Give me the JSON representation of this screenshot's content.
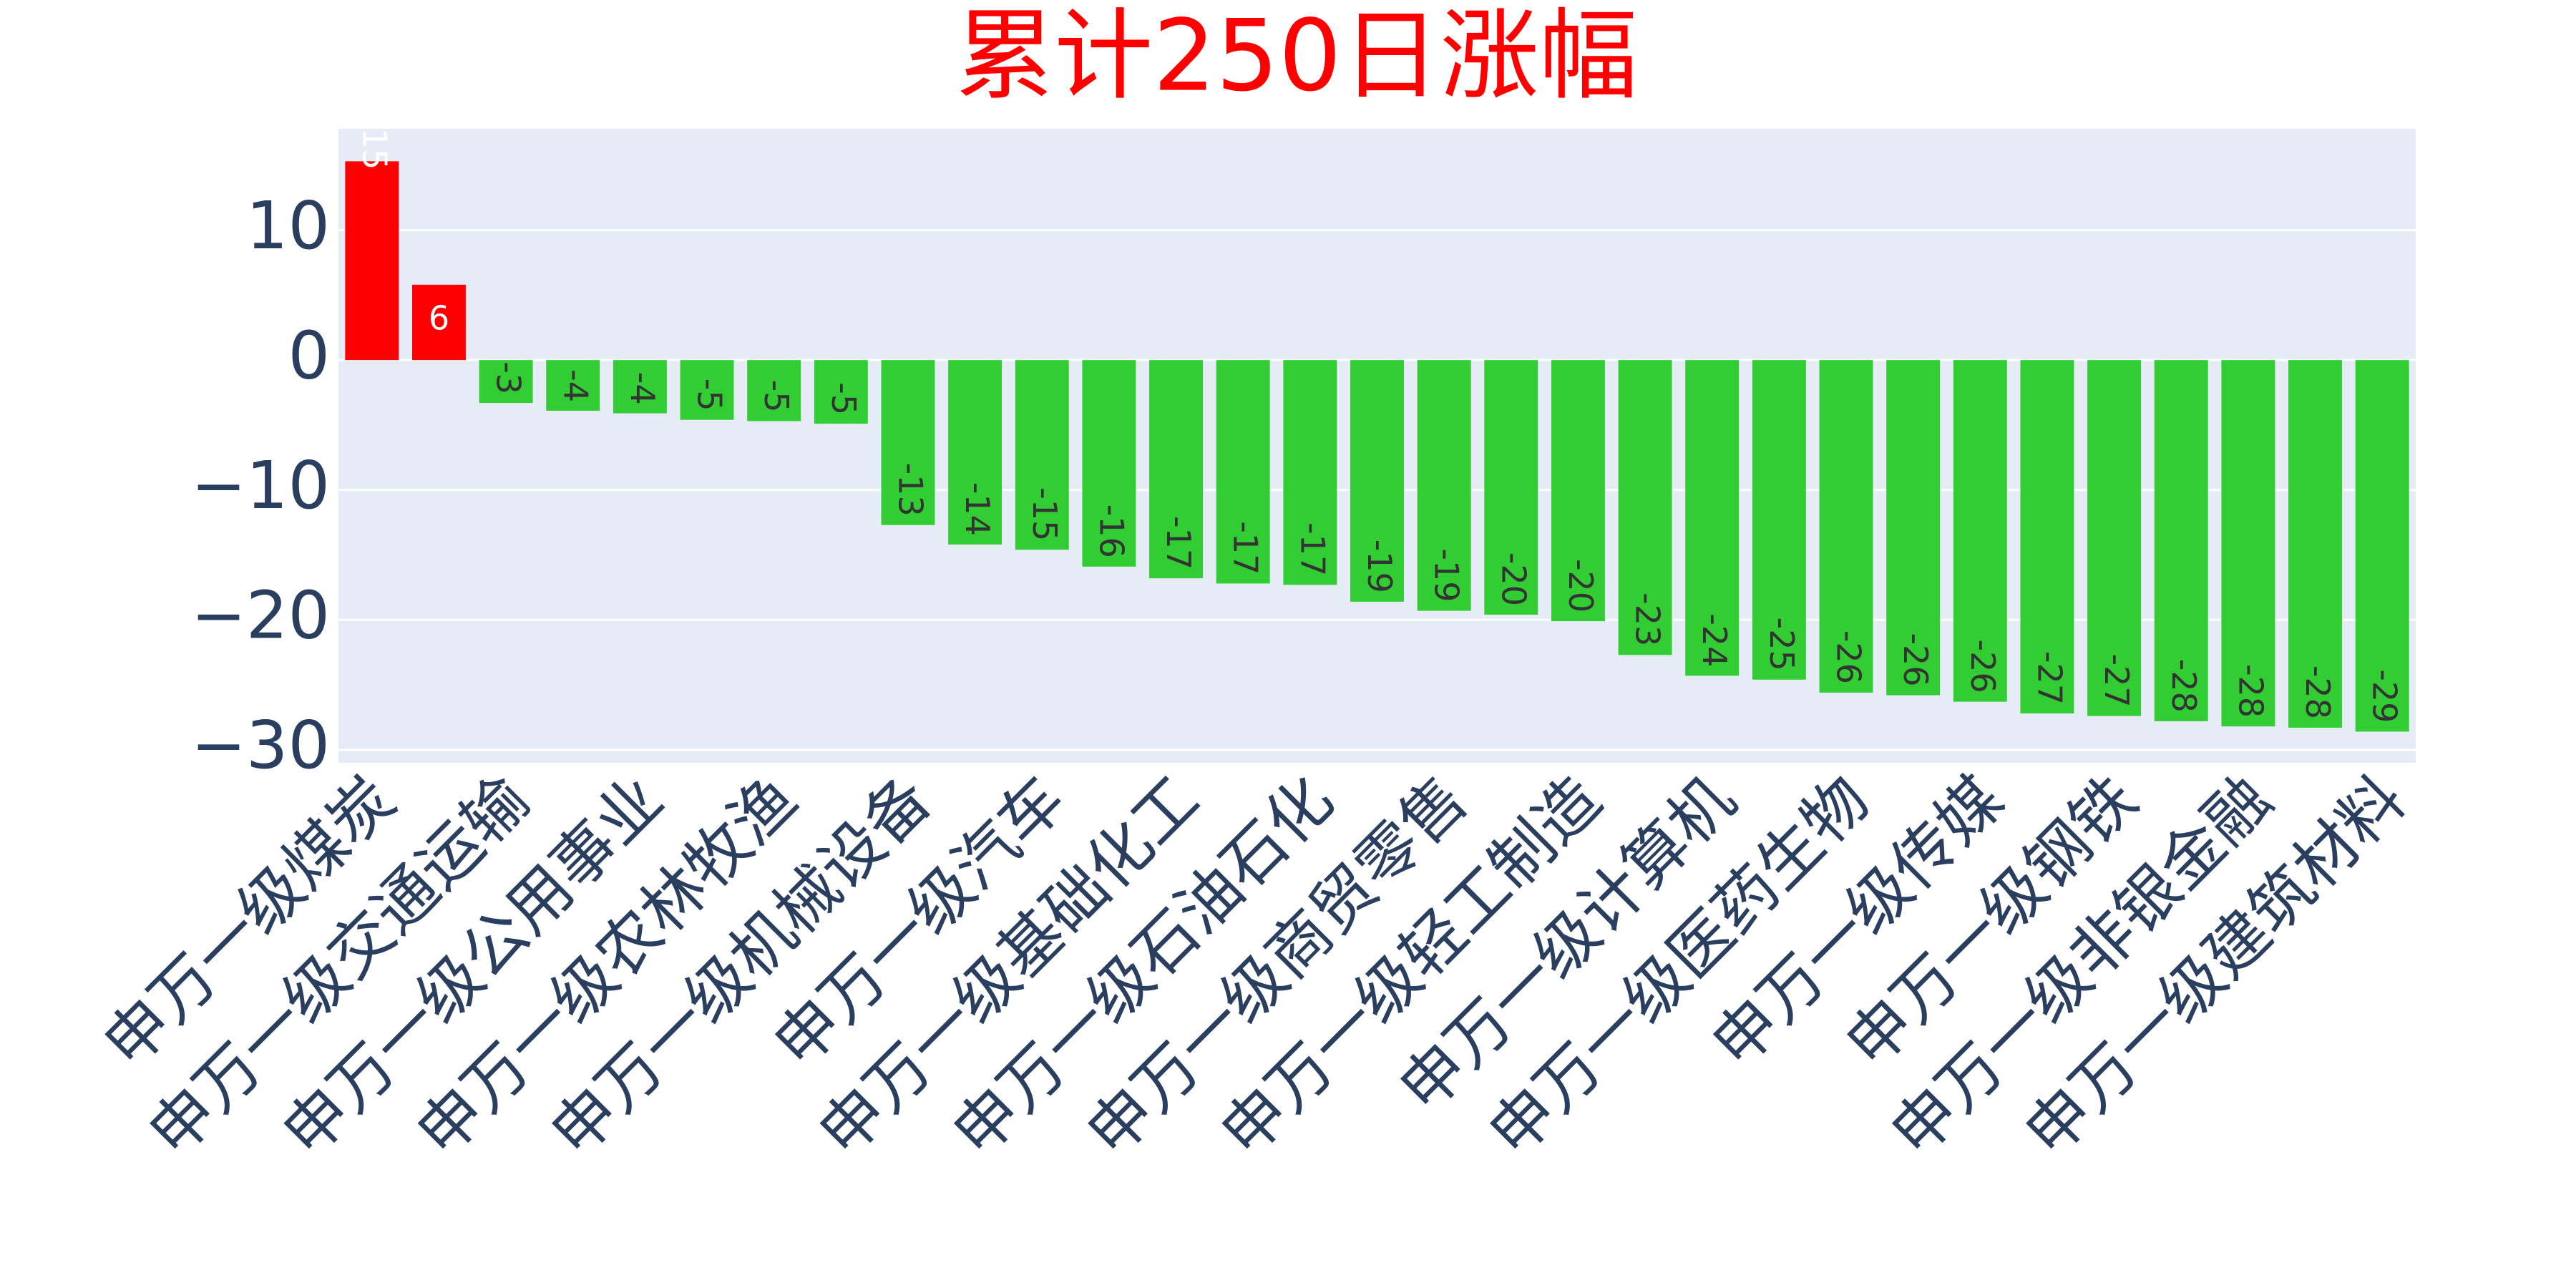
{
  "chart_data": {
    "type": "bar",
    "title": "累计250日涨幅",
    "categories": [
      "申万一级煤炭",
      null,
      "申万一级交通运输",
      null,
      "申万一级公用事业",
      null,
      "申万一级农林牧渔",
      null,
      "申万一级机械设备",
      null,
      "申万一级汽车",
      null,
      "申万一级基础化工",
      null,
      "申万一级石油石化",
      null,
      "申万一级商贸零售",
      null,
      "申万一级轻工制造",
      null,
      "申万一级计算机",
      null,
      "申万一级医药生物",
      null,
      "申万一级传媒",
      null,
      "申万一级钢铁",
      null,
      "申万一级非银金融",
      null,
      "申万一级建筑材料"
    ],
    "values": [
      15.3,
      5.8,
      -3.3,
      -3.9,
      -4.1,
      -4.6,
      -4.7,
      -4.9,
      -12.7,
      -14.2,
      -14.6,
      -15.9,
      -16.8,
      -17.2,
      -17.3,
      -18.6,
      -19.3,
      -19.6,
      -20.1,
      -22.7,
      -24.3,
      -24.6,
      -25.6,
      -25.8,
      -26.3,
      -27.2,
      -27.4,
      -27.8,
      -28.2,
      -28.3,
      -28.6
    ],
    "value_labels": [
      "15",
      "6",
      "-3",
      "-4",
      "-4",
      "-5",
      "-5",
      "-5",
      "-13",
      "-14",
      "-15",
      "-16",
      "-17",
      "-17",
      "-17",
      "-19",
      "-19",
      "-20",
      "-20",
      "-23",
      "-24",
      "-25",
      "-26",
      "-26",
      "-26",
      "-27",
      "-27",
      "-28",
      "-28",
      "-28",
      "-29"
    ],
    "color_positive": "#ff0000",
    "color_negative": "#32cd32",
    "ylim": [
      -31,
      17.8
    ],
    "yticks": [
      {
        "value": -30,
        "label": "−30"
      },
      {
        "value": -20,
        "label": "−20"
      },
      {
        "value": -10,
        "label": "−10"
      },
      0,
      10
    ],
    "grid": true
  }
}
